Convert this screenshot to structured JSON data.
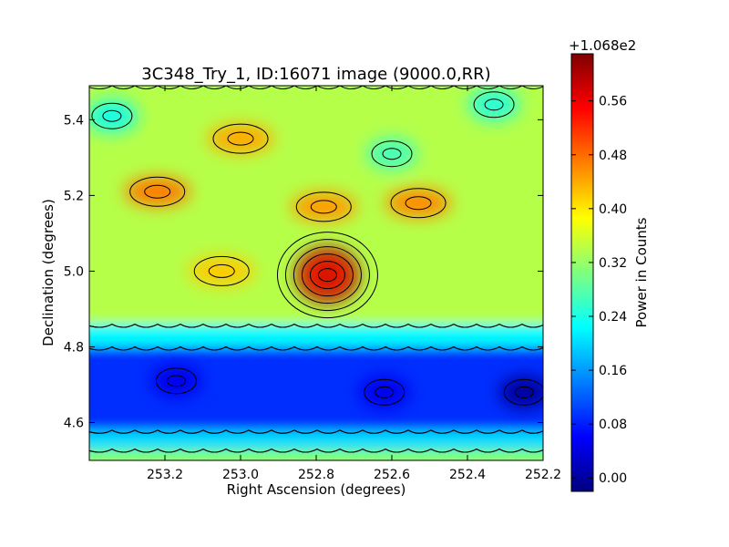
{
  "chart_data": {
    "type": "heatmap",
    "title": "3C348_Try_1, ID:16071 image (9000.0,RR)",
    "xlabel": "Right Ascension (degrees)",
    "ylabel": "Declination (degrees)",
    "xlim": [
      253.4,
      252.2
    ],
    "ylim": [
      4.5,
      5.49
    ],
    "x_ticks": [
      {
        "value": 253.2,
        "label": "253.2"
      },
      {
        "value": 253.0,
        "label": "253.0"
      },
      {
        "value": 252.8,
        "label": "252.8"
      },
      {
        "value": 252.6,
        "label": "252.6"
      },
      {
        "value": 252.4,
        "label": "252.4"
      },
      {
        "value": 252.2,
        "label": "252.2"
      }
    ],
    "y_ticks": [
      {
        "value": 4.6,
        "label": "4.6"
      },
      {
        "value": 4.8,
        "label": "4.8"
      },
      {
        "value": 5.0,
        "label": "5.0"
      },
      {
        "value": 5.2,
        "label": "5.2"
      },
      {
        "value": 5.4,
        "label": "5.4"
      }
    ],
    "colorbar": {
      "label": "Power in Counts",
      "offset_label": "+1.068e2",
      "range": [
        -0.02,
        0.63
      ],
      "ticks": [
        {
          "value": 0.0,
          "label": "0.00"
        },
        {
          "value": 0.08,
          "label": "0.08"
        },
        {
          "value": 0.16,
          "label": "0.16"
        },
        {
          "value": 0.24,
          "label": "0.24"
        },
        {
          "value": 0.32,
          "label": "0.32"
        },
        {
          "value": 0.4,
          "label": "0.40"
        },
        {
          "value": 0.48,
          "label": "0.48"
        },
        {
          "value": 0.56,
          "label": "0.56"
        }
      ],
      "colormap": [
        "#00007f",
        "#0000ff",
        "#007fff",
        "#00ffff",
        "#7fff7f",
        "#ffff00",
        "#ff7f00",
        "#ff0000",
        "#7f0000"
      ]
    },
    "background_level": 0.33,
    "bands": [
      {
        "dec_from": 4.5,
        "dec_to": 4.53,
        "value": 0.3
      },
      {
        "dec_from": 4.53,
        "dec_to": 4.58,
        "value": 0.2
      },
      {
        "dec_from": 4.58,
        "dec_to": 4.8,
        "value": 0.09
      },
      {
        "dec_from": 4.8,
        "dec_to": 4.86,
        "value": 0.22
      },
      {
        "dec_from": 4.86,
        "dec_to": 5.49,
        "value": 0.34
      }
    ],
    "features": [
      {
        "ra": 252.77,
        "dec": 4.99,
        "value": 0.62,
        "kind": "peak"
      },
      {
        "ra": 253.22,
        "dec": 5.21,
        "value": 0.47,
        "kind": "peak"
      },
      {
        "ra": 252.78,
        "dec": 5.17,
        "value": 0.45,
        "kind": "peak"
      },
      {
        "ra": 252.53,
        "dec": 5.18,
        "value": 0.46,
        "kind": "peak"
      },
      {
        "ra": 253.05,
        "dec": 5.0,
        "value": 0.42,
        "kind": "peak"
      },
      {
        "ra": 253.0,
        "dec": 5.35,
        "value": 0.44,
        "kind": "peak"
      },
      {
        "ra": 253.34,
        "dec": 5.41,
        "value": 0.24,
        "kind": "trough"
      },
      {
        "ra": 252.33,
        "dec": 5.44,
        "value": 0.25,
        "kind": "trough"
      },
      {
        "ra": 252.6,
        "dec": 5.31,
        "value": 0.27,
        "kind": "trough"
      },
      {
        "ra": 252.25,
        "dec": 4.68,
        "value": 0.0,
        "kind": "trough"
      },
      {
        "ra": 253.17,
        "dec": 4.71,
        "value": 0.05,
        "kind": "trough"
      },
      {
        "ra": 252.62,
        "dec": 4.68,
        "value": 0.05,
        "kind": "trough"
      }
    ],
    "contour_levels": [
      0.06,
      0.12,
      0.2,
      0.26,
      0.3,
      0.38,
      0.44,
      0.5,
      0.56
    ]
  }
}
